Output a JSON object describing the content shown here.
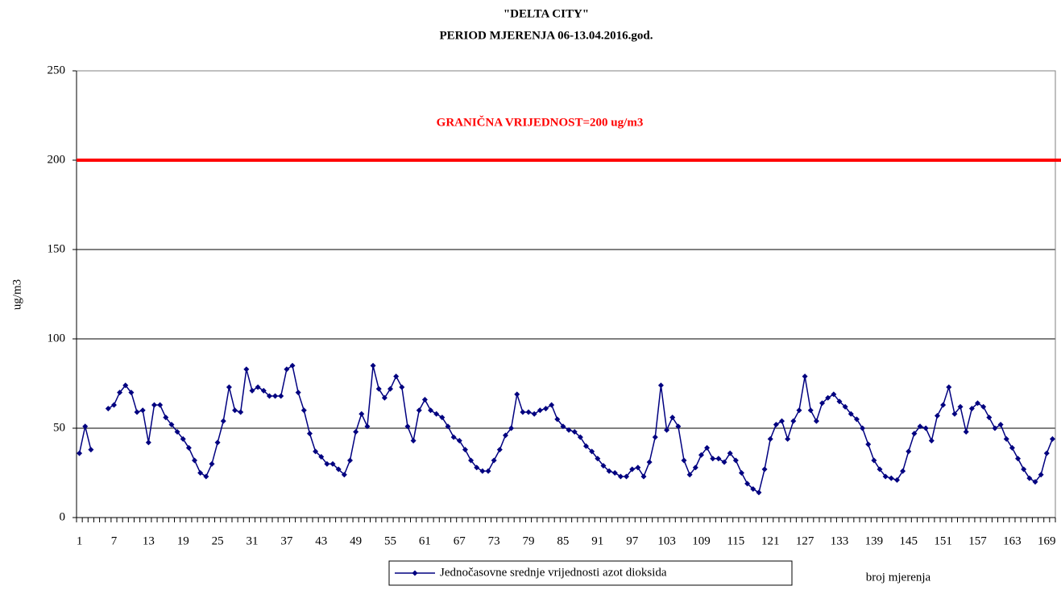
{
  "chart_data": {
    "type": "line",
    "title": "\"DELTA CITY\"",
    "subtitle": "PERIOD MJERENJA 06-13.04.2016.god.",
    "ylabel": "ug/m3",
    "xlabel": "broj mjerenja",
    "annotation": "GRANIČNA VRIJEDNOST=200 ug/m3",
    "limit_line": {
      "value": 200,
      "color": "#ff0000"
    },
    "ylim": [
      0,
      250
    ],
    "yticks": [
      0,
      50,
      100,
      150,
      200,
      250
    ],
    "grid": true,
    "categories": [
      1,
      null,
      null,
      null,
      null,
      null,
      7,
      null,
      null,
      null,
      null,
      null,
      13,
      null,
      null,
      null,
      null,
      null,
      19,
      null,
      null,
      null,
      null,
      null,
      25,
      null,
      null,
      null,
      null,
      null,
      31,
      null,
      null,
      null,
      null,
      null,
      37,
      null,
      null,
      null,
      null,
      null,
      43,
      null,
      null,
      null,
      null,
      null,
      49,
      null,
      null,
      null,
      null,
      null,
      55,
      null,
      null,
      null,
      null,
      null,
      61,
      null,
      null,
      null,
      null,
      null,
      67,
      null,
      null,
      null,
      null,
      null,
      73,
      null,
      null,
      null,
      null,
      null,
      79,
      null,
      null,
      null,
      null,
      null,
      85,
      null,
      null,
      null,
      null,
      null,
      91,
      null,
      null,
      null,
      null,
      null,
      97,
      null,
      null,
      null,
      null,
      null,
      103,
      null,
      null,
      null,
      null,
      null,
      109,
      null,
      null,
      null,
      null,
      null,
      115,
      null,
      null,
      null,
      null,
      null,
      121,
      null,
      null,
      null,
      null,
      null,
      127,
      null,
      null,
      null,
      null,
      null,
      133,
      null,
      null,
      null,
      null,
      null,
      139,
      null,
      null,
      null,
      null,
      null,
      145,
      null,
      null,
      null,
      null,
      null,
      151,
      null,
      null,
      null,
      null,
      null,
      157,
      null,
      null,
      null,
      null,
      null,
      163,
      null,
      null,
      null,
      null,
      null,
      169,
      null
    ],
    "series": [
      {
        "name": "Jednočasovne srednje vrijednosti azot dioksida",
        "color": "#000080",
        "values": [
          36,
          51,
          38,
          null,
          null,
          61,
          63,
          70,
          74,
          70,
          59,
          60,
          42,
          63,
          63,
          56,
          52,
          48,
          44,
          39,
          32,
          25,
          23,
          30,
          42,
          54,
          73,
          60,
          59,
          83,
          71,
          73,
          71,
          68,
          68,
          68,
          83,
          85,
          70,
          60,
          47,
          37,
          34,
          30,
          30,
          27,
          24,
          32,
          48,
          58,
          51,
          85,
          72,
          67,
          72,
          79,
          73,
          51,
          43,
          60,
          66,
          60,
          58,
          56,
          51,
          45,
          43,
          38,
          32,
          28,
          26,
          26,
          32,
          38,
          46,
          50,
          69,
          59,
          59,
          58,
          60,
          61,
          63,
          55,
          51,
          49,
          48,
          45,
          40,
          37,
          33,
          29,
          26,
          25,
          23,
          23,
          27,
          28,
          23,
          31,
          45,
          74,
          49,
          56,
          51,
          32,
          24,
          28,
          35,
          39,
          33,
          33,
          31,
          36,
          32,
          25,
          19,
          16,
          14,
          27,
          44,
          52,
          54,
          44,
          54,
          60,
          79,
          60,
          54,
          64,
          67,
          69,
          65,
          62,
          58,
          55,
          50,
          41,
          32,
          27,
          23,
          22,
          21,
          26,
          37,
          47,
          51,
          50,
          43,
          57,
          63,
          73,
          58,
          62,
          48,
          61,
          64,
          62,
          56,
          50,
          52,
          44,
          39,
          33,
          27,
          22,
          20,
          24,
          36,
          44
        ]
      }
    ]
  }
}
